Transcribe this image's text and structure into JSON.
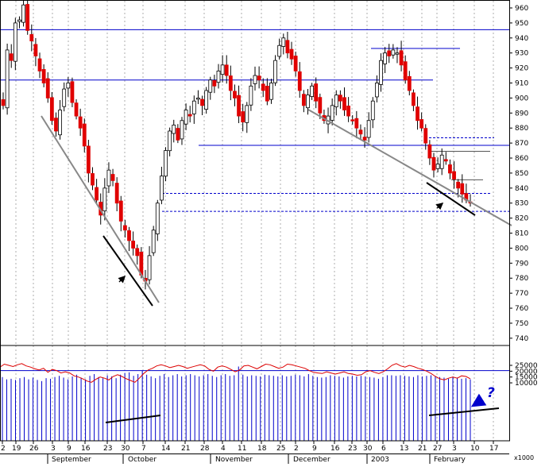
{
  "chart_data": [
    {
      "type": "candlestick",
      "title": "",
      "y_ticks": [
        960,
        950,
        940,
        930,
        920,
        910,
        900,
        890,
        880,
        870,
        860,
        850,
        840,
        830,
        820,
        810,
        800,
        790,
        780,
        770,
        760,
        750,
        740
      ],
      "ylim": [
        733,
        966
      ],
      "x_day_labels": [
        "2",
        "19",
        "26",
        "3",
        "9",
        "16",
        "23",
        "30",
        "7",
        "14",
        "21",
        "28",
        "4",
        "11",
        "18",
        "25",
        "2",
        "9",
        "16",
        "23",
        "30",
        "6",
        "13",
        "21",
        "27",
        "3",
        "10",
        "17"
      ],
      "x_month_labels": [
        "September",
        "October",
        "November",
        "December",
        "2003",
        "February"
      ],
      "horizontal_levels": [
        {
          "value": 945.5,
          "style": "solid",
          "color": "#0000cc"
        },
        {
          "value": 912,
          "style": "solid",
          "color": "#0000cc"
        },
        {
          "value": 933,
          "style": "solid",
          "color": "#0000cc"
        },
        {
          "value": 868.5,
          "style": "solid",
          "color": "#0000cc"
        },
        {
          "value": 873.5,
          "style": "dashed",
          "color": "#0000cc"
        },
        {
          "value": 864.5,
          "style": "solid",
          "color": "#555555"
        },
        {
          "value": 845.5,
          "style": "solid",
          "color": "#555555"
        },
        {
          "value": 836.5,
          "style": "dashed",
          "color": "#0000cc"
        },
        {
          "value": 824.5,
          "style": "dashed",
          "color": "#0000cc"
        }
      ],
      "price_path": [
        895,
        932,
        925,
        950,
        952,
        962,
        945,
        938,
        928,
        918,
        910,
        900,
        885,
        878,
        892,
        906,
        910,
        897,
        888,
        880,
        868,
        850,
        842,
        832,
        822,
        840,
        852,
        845,
        830,
        818,
        812,
        805,
        800,
        795,
        782,
        778,
        795,
        812,
        830,
        848,
        865,
        878,
        882,
        872,
        885,
        892,
        888,
        898,
        900,
        895,
        905,
        912,
        908,
        918,
        922,
        915,
        905,
        900,
        888,
        884,
        895,
        908,
        915,
        912,
        905,
        898,
        910,
        925,
        935,
        940,
        930,
        926,
        918,
        905,
        895,
        902,
        908,
        898,
        890,
        885,
        888,
        895,
        902,
        898,
        892,
        888,
        885,
        880,
        876,
        872,
        885,
        898,
        910,
        925,
        930,
        928,
        932,
        930,
        922,
        912,
        905,
        895,
        885,
        880,
        870,
        860,
        852,
        856,
        862,
        858,
        850,
        846,
        840,
        836,
        832,
        830
      ]
    },
    {
      "type": "line-bar",
      "y_ticks": [
        25000,
        20000,
        15000,
        10000
      ],
      "unit_label": "x1000",
      "ylim": [
        7000,
        29000
      ],
      "oscillator_path": [
        23500,
        26000,
        25000,
        24000,
        25500,
        26500,
        24500,
        23500,
        22000,
        21000,
        22500,
        19000,
        21500,
        20500,
        18500,
        19500,
        18500,
        16000,
        15000,
        13500,
        11500,
        10500,
        13000,
        15000,
        14000,
        12500,
        15500,
        17000,
        15500,
        13500,
        12000,
        10500,
        14000,
        18000,
        21000,
        22500,
        24500,
        25500,
        24500,
        23000,
        24000,
        25000,
        24000,
        22500,
        23500,
        24500,
        25500,
        24500,
        21500,
        20000,
        23500,
        24500,
        23500,
        21500,
        19500,
        21000,
        24500,
        25000,
        23500,
        22000,
        24000,
        26000,
        25500,
        24000,
        22500,
        23500,
        26000,
        25500,
        24500,
        23500,
        22500,
        20500,
        19000,
        18500,
        18000,
        19500,
        18500,
        17500,
        18500,
        19500,
        18000,
        17500,
        16500,
        17000,
        19500,
        20500,
        19000,
        18000,
        19500,
        22000,
        25000,
        26500,
        24500,
        23500,
        25000,
        24000,
        22500,
        21500,
        20000,
        18000,
        15500,
        13500,
        12500,
        14000,
        15000,
        14000,
        16000,
        15500,
        13500
      ],
      "volume_bars": [
        15000,
        13000,
        13500,
        12500,
        14000,
        15000,
        13000,
        14500,
        12500,
        11500,
        14000,
        13500,
        15000,
        16000,
        14500,
        13000,
        15500,
        17000,
        14500,
        13000,
        16000,
        17500,
        15000,
        14000,
        16500,
        15500,
        14000,
        17000,
        18500,
        19000,
        16000,
        17500,
        20500,
        17000,
        15500,
        14000,
        16000,
        17500,
        15000,
        16500,
        17500,
        15500,
        16500,
        17500,
        16500,
        15500,
        16500,
        17500,
        16000,
        15000,
        16500,
        17500,
        16000,
        16500,
        24000,
        17000,
        15500,
        16500,
        16000,
        15500,
        17000,
        16500,
        16000,
        15500,
        16500,
        15500,
        16000,
        17000,
        16500,
        15500,
        17500,
        16000,
        15000,
        14500,
        15000,
        16500,
        16000,
        15500,
        14500,
        15500,
        16000,
        15500,
        16000,
        15500,
        15000,
        14500,
        13500,
        15000,
        16500,
        16500,
        16000,
        16500,
        16000,
        15500,
        15000,
        16500,
        15500,
        16000,
        16500,
        15500,
        15000,
        14500,
        13500,
        15000,
        14500,
        13500,
        14000,
        13000
      ],
      "annotation": "?"
    }
  ]
}
